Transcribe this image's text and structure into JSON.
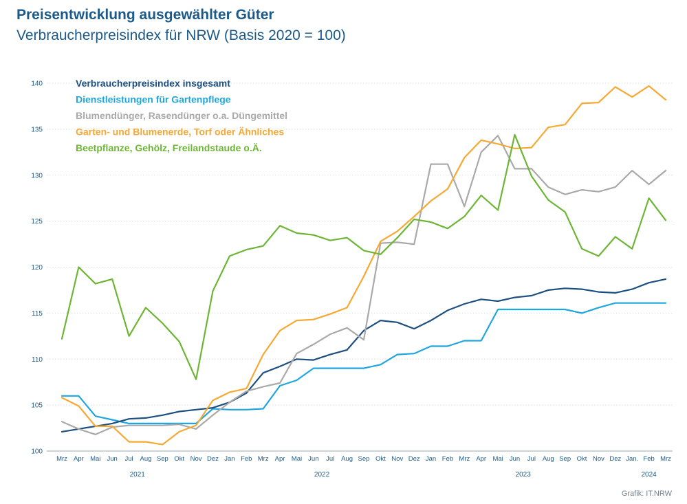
{
  "title": "Preisentwicklung ausgewählter Güter",
  "subtitle": "Verbraucherpreisindex für NRW (Basis 2020 = 100)",
  "source": "Grafik: IT.NRW",
  "chart_data": {
    "type": "line",
    "ylim": [
      100,
      140
    ],
    "yticks": [
      100,
      105,
      110,
      115,
      120,
      125,
      130,
      135,
      140
    ],
    "grid": true,
    "legend_position": "top-left",
    "categories": [
      "Mrz",
      "Apr",
      "Mai",
      "Jun",
      "Jul",
      "Aug",
      "Sep",
      "Okt",
      "Nov",
      "Dez",
      "Jan",
      "Feb",
      "Mrz",
      "Apr",
      "Mai",
      "Jun",
      "Jul",
      "Aug",
      "Sep",
      "Okt",
      "Nov",
      "Dez",
      "Jan",
      "Feb",
      "Mrz",
      "Apr",
      "Mai",
      "Jun",
      "Jul",
      "Aug",
      "Sep",
      "Okt",
      "Nov",
      "Dez",
      "Jan.",
      "Feb",
      "Mrz"
    ],
    "years": [
      {
        "label": "2021",
        "center_index": 4.5
      },
      {
        "label": "2022",
        "center_index": 15.5
      },
      {
        "label": "2023",
        "center_index": 27.5
      },
      {
        "label": "2024",
        "center_index": 35
      }
    ],
    "series": [
      {
        "name": "Verbraucherpreisindex insgesamt",
        "color": "#1c4f80",
        "values": [
          102.1,
          102.4,
          102.7,
          103.0,
          103.5,
          103.6,
          103.9,
          104.3,
          104.5,
          104.7,
          105.3,
          106.3,
          108.5,
          109.2,
          110.0,
          109.9,
          110.5,
          111.0,
          113.1,
          114.2,
          114.0,
          113.3,
          114.2,
          115.3,
          116.0,
          116.5,
          116.3,
          116.7,
          116.9,
          117.5,
          117.7,
          117.6,
          117.3,
          117.2,
          117.6,
          118.3,
          118.7
        ]
      },
      {
        "name": "Dienstleistungen für Gartenpflege",
        "color": "#1fa6de",
        "values": [
          106.0,
          106.0,
          103.8,
          103.4,
          103.0,
          103.0,
          103.0,
          103.0,
          103.0,
          104.6,
          104.5,
          104.5,
          104.6,
          107.1,
          107.7,
          109.0,
          109.0,
          109.0,
          109.0,
          109.4,
          110.5,
          110.6,
          111.4,
          111.4,
          112.0,
          112.0,
          115.4,
          115.4,
          115.4,
          115.4,
          115.4,
          115.0,
          115.6,
          116.1,
          116.1,
          116.1,
          116.1
        ]
      },
      {
        "name": "Blumendünger, Rasendünger o.a. Düngemittel",
        "color": "#a9a9a9",
        "values": [
          103.2,
          102.4,
          101.8,
          102.6,
          102.8,
          102.8,
          102.8,
          102.9,
          102.4,
          103.9,
          105.3,
          106.5,
          107.0,
          107.4,
          110.6,
          111.6,
          112.7,
          113.4,
          112.1,
          122.6,
          122.7,
          122.5,
          131.2,
          131.2,
          126.6,
          132.5,
          134.3,
          130.7,
          130.7,
          128.7,
          127.9,
          128.4,
          128.2,
          128.7,
          130.5,
          129.0,
          130.5
        ]
      },
      {
        "name": "Garten- und Blumenerde, Torf oder Ähnliches",
        "color": "#f7a833",
        "values": [
          105.8,
          104.9,
          102.7,
          102.7,
          101.0,
          101.0,
          100.7,
          102.1,
          102.8,
          105.5,
          106.4,
          106.8,
          110.5,
          113.1,
          114.2,
          114.3,
          114.9,
          115.6,
          119.0,
          122.8,
          123.9,
          125.5,
          127.2,
          128.5,
          131.9,
          133.8,
          133.4,
          132.9,
          133.0,
          135.2,
          135.5,
          137.8,
          137.9,
          139.6,
          138.5,
          139.7,
          138.2
        ]
      },
      {
        "name": "Beetpflanze, Gehölz, Freilandstaude o.Ä.",
        "color": "#6db535",
        "values": [
          112.2,
          120.0,
          118.2,
          118.7,
          112.5,
          115.6,
          113.9,
          111.9,
          107.8,
          117.4,
          121.2,
          121.9,
          122.3,
          124.5,
          123.7,
          123.5,
          122.9,
          123.2,
          121.8,
          121.4,
          123.2,
          125.2,
          124.9,
          124.2,
          125.5,
          127.8,
          126.2,
          134.4,
          129.9,
          127.3,
          126.0,
          122.0,
          121.2,
          123.3,
          122.0,
          127.5,
          125.1
        ]
      }
    ]
  }
}
